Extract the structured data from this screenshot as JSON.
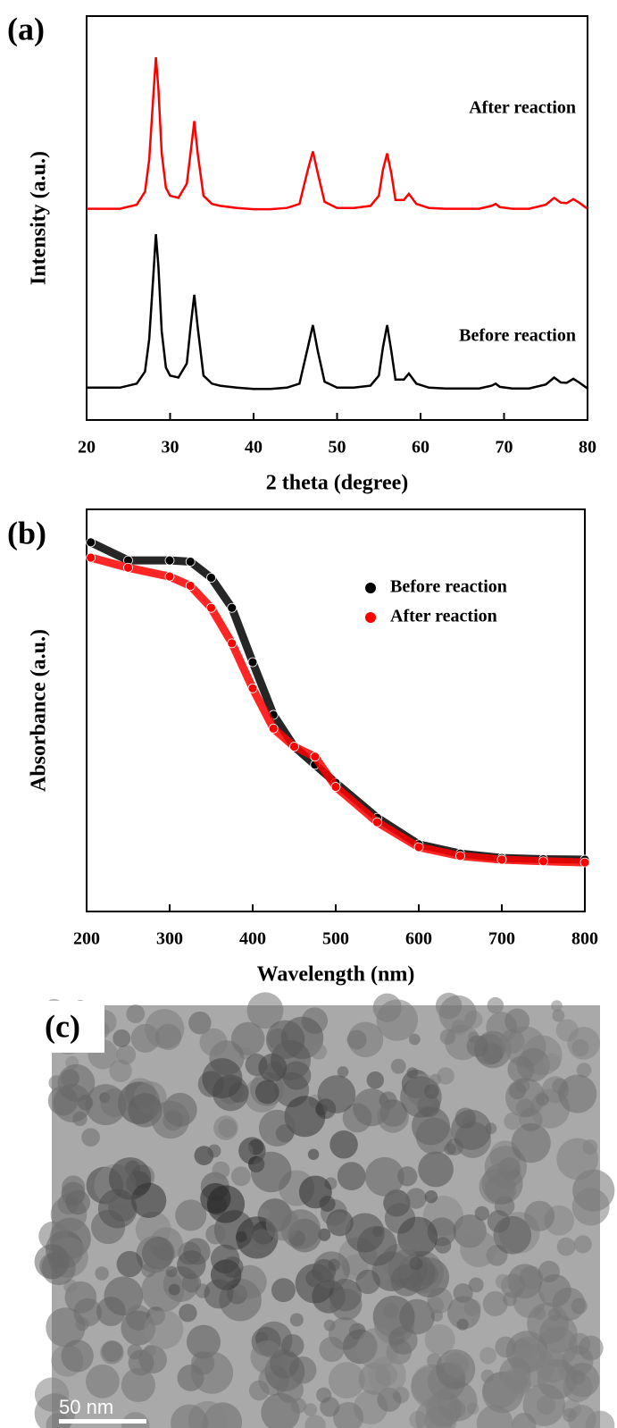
{
  "chart_data": [
    {
      "type": "line",
      "panel_label": "(a)",
      "xlabel": "2 theta (degree)",
      "ylabel": "Intensity (a.u.)",
      "x": [
        20,
        22,
        24,
        26,
        27,
        27.5,
        28,
        28.3,
        28.6,
        29,
        29.5,
        30,
        31,
        32,
        32.5,
        32.9,
        33.3,
        34,
        35,
        36,
        38,
        40,
        42,
        44,
        45.5,
        46.5,
        47.1,
        47.7,
        48.5,
        50,
        52,
        54,
        55,
        55.5,
        56,
        56.5,
        57,
        58,
        58.6,
        59.5,
        61,
        63,
        65,
        67,
        68.5,
        69,
        69.5,
        71,
        73,
        75,
        76,
        76.8,
        77.5,
        78.3,
        79,
        80
      ],
      "xlim": [
        20,
        80
      ],
      "xticks": [
        20,
        30,
        40,
        50,
        60,
        70,
        80
      ],
      "ylim": [
        0,
        100
      ],
      "series": [
        {
          "name": "Before reaction",
          "color": "#000000",
          "values": [
            8,
            8,
            8,
            9,
            12,
            20,
            36,
            46,
            38,
            22,
            13,
            11,
            10.5,
            14,
            24,
            31,
            23,
            11,
            9,
            8.5,
            8,
            7.7,
            7.7,
            8,
            9,
            18,
            23.5,
            17,
            9.5,
            8,
            8,
            8.5,
            11,
            18,
            23.5,
            17,
            10,
            10,
            11.5,
            9,
            8,
            7.8,
            7.8,
            7.8,
            8.5,
            9,
            8.2,
            7.8,
            7.8,
            8.8,
            10.5,
            9.3,
            9.2,
            10.2,
            9.3,
            7.8
          ]
        },
        {
          "name": "After reaction",
          "color": "#ff0000",
          "values": [
            52.3,
            52.3,
            52.3,
            53.3,
            56.5,
            64.5,
            80.5,
            89.8,
            82,
            66,
            57.5,
            55.5,
            55,
            58.5,
            67,
            74,
            66,
            55.5,
            53.5,
            53,
            52.5,
            52.2,
            52.2,
            52.5,
            53.5,
            62,
            66.5,
            61,
            54,
            52.5,
            52.5,
            53,
            55.5,
            62,
            66,
            61,
            54.5,
            54.5,
            56,
            53.5,
            52.5,
            52.3,
            52.3,
            52.3,
            53,
            53.5,
            52.7,
            52.3,
            52.3,
            53.3,
            55,
            53.8,
            53.7,
            54.7,
            53.8,
            52.3
          ]
        }
      ]
    },
    {
      "type": "scatter",
      "panel_label": "(b)",
      "xlabel": "Wavelength (nm)",
      "ylabel": "Absorbance (a.u.)",
      "x": [
        205,
        250,
        300,
        325,
        350,
        375,
        400,
        425,
        450,
        475,
        500,
        550,
        600,
        650,
        700,
        750,
        800
      ],
      "xlim": [
        200,
        800
      ],
      "xticks": [
        200,
        300,
        400,
        500,
        600,
        700,
        800
      ],
      "ylim": [
        0,
        100
      ],
      "legend": "upper right",
      "series": [
        {
          "name": "Before reaction",
          "color": "#000000",
          "values": [
            91.8,
            87.3,
            87.3,
            87,
            83,
            75.5,
            62,
            48.9,
            41,
            36.5,
            32,
            23.3,
            16.7,
            14.4,
            13.3,
            13,
            12.9
          ]
        },
        {
          "name": "After reaction",
          "color": "#ff0000",
          "values": [
            88,
            85.5,
            83.3,
            81,
            75.5,
            66.7,
            55.5,
            45.5,
            41,
            38.5,
            31,
            22.2,
            16,
            13.8,
            12.9,
            12.5,
            12.2
          ]
        }
      ]
    }
  ],
  "image": {
    "panel_label": "(c)",
    "scale_bar": "50 nm"
  }
}
